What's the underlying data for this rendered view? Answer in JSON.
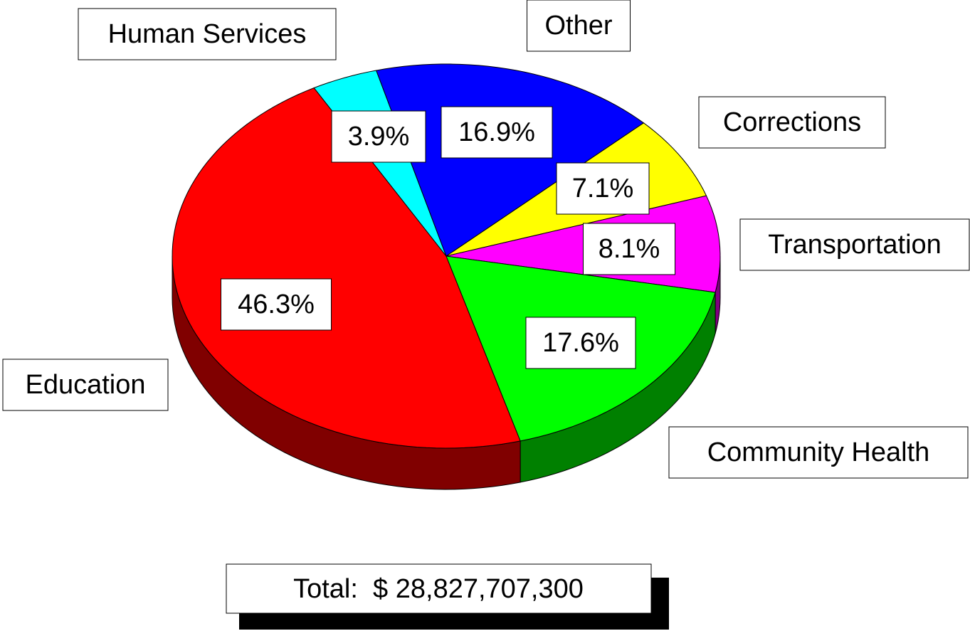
{
  "chart_data": {
    "type": "pie3d",
    "categories": [
      "Education",
      "Human Services",
      "Other",
      "Corrections",
      "Transportation",
      "Community Health"
    ],
    "values": [
      46.3,
      3.9,
      16.9,
      7.1,
      8.1,
      17.6
    ],
    "value_labels": [
      "46.3%",
      "3.9%",
      "16.9%",
      "7.1%",
      "8.1%",
      "17.6%"
    ],
    "colors": [
      "#ff0000",
      "#00ffff",
      "#0000ff",
      "#ffff00",
      "#ff00ff",
      "#00ff00"
    ],
    "annotation": "Total:  $ 28,827,707,300"
  }
}
